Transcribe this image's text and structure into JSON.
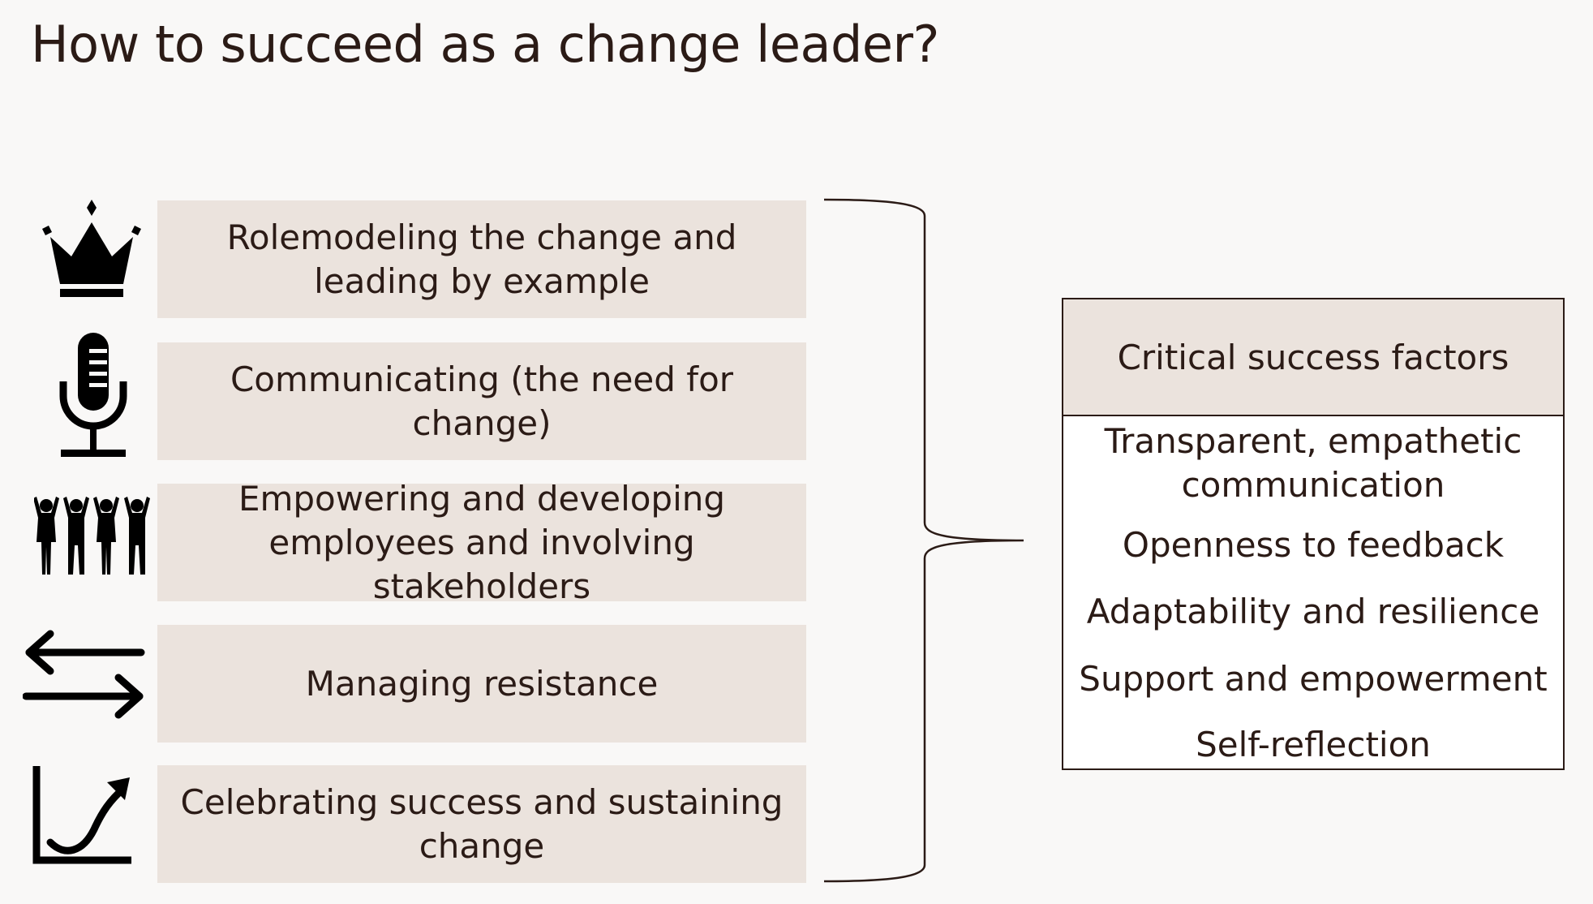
{
  "title": "How to succeed as a change leader?",
  "colors": {
    "background": "#f9f8f7",
    "box_fill": "#ebe3dd",
    "text": "#2b1b16",
    "icon": "#000000"
  },
  "actions": [
    {
      "icon": "crown-icon",
      "label": "Rolemodeling the change and leading by example"
    },
    {
      "icon": "microphone-icon",
      "label": "Communicating (the need for change)"
    },
    {
      "icon": "group-people-icon",
      "label": "Empowering and developing employees and involving stakeholders"
    },
    {
      "icon": "exchange-arrows-icon",
      "label": "Managing resistance"
    },
    {
      "icon": "growth-chart-icon",
      "label": "Celebrating success and sustaining change"
    }
  ],
  "critical_success_factors": {
    "header": "Critical success factors",
    "items": [
      "Transparent, empathetic communication",
      "Openness to feedback",
      "Adaptability and resilience",
      "Support and empowerment",
      "Self-reflection"
    ]
  }
}
